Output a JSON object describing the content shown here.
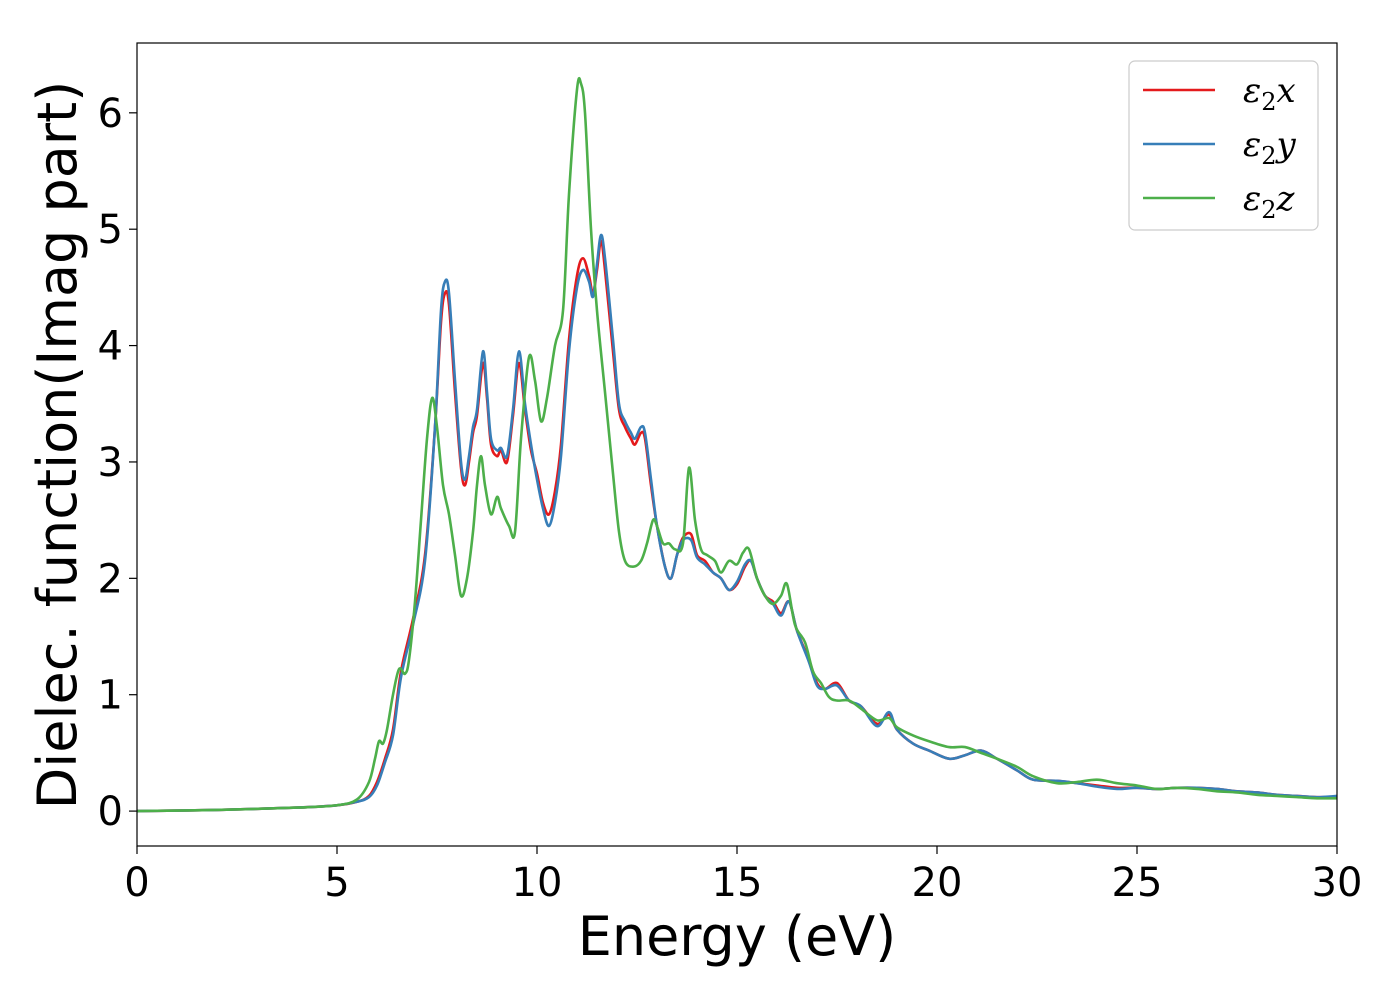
{
  "chart_data": {
    "type": "line",
    "xlabel": "Energy (eV)",
    "ylabel": "Dielec. function(Imag part)",
    "xlim": [
      0,
      30
    ],
    "ylim": [
      -0.3,
      6.6
    ],
    "xticks": [
      0,
      5,
      10,
      15,
      20,
      25,
      30
    ],
    "yticks": [
      0,
      1,
      2,
      3,
      4,
      5,
      6
    ],
    "grid": false,
    "legend": "top-right",
    "series": [
      {
        "name": "ε2x",
        "legend_base": "ε",
        "legend_sub": "2",
        "legend_var": "x",
        "color": "#e41a1c",
        "points": [
          [
            0,
            0.0
          ],
          [
            2,
            0.01
          ],
          [
            4,
            0.03
          ],
          [
            5,
            0.05
          ],
          [
            5.5,
            0.08
          ],
          [
            5.8,
            0.13
          ],
          [
            6.0,
            0.25
          ],
          [
            6.2,
            0.45
          ],
          [
            6.4,
            0.7
          ],
          [
            6.6,
            1.2
          ],
          [
            6.9,
            1.65
          ],
          [
            7.2,
            2.2
          ],
          [
            7.45,
            3.3
          ],
          [
            7.6,
            4.2
          ],
          [
            7.7,
            4.45
          ],
          [
            7.8,
            4.35
          ],
          [
            7.95,
            3.6
          ],
          [
            8.1,
            2.95
          ],
          [
            8.2,
            2.8
          ],
          [
            8.3,
            3.0
          ],
          [
            8.4,
            3.25
          ],
          [
            8.5,
            3.4
          ],
          [
            8.65,
            3.85
          ],
          [
            8.75,
            3.55
          ],
          [
            8.85,
            3.15
          ],
          [
            9.0,
            3.05
          ],
          [
            9.1,
            3.1
          ],
          [
            9.25,
            3.0
          ],
          [
            9.4,
            3.4
          ],
          [
            9.55,
            3.85
          ],
          [
            9.7,
            3.45
          ],
          [
            9.85,
            3.1
          ],
          [
            10.0,
            2.9
          ],
          [
            10.15,
            2.65
          ],
          [
            10.3,
            2.55
          ],
          [
            10.45,
            2.75
          ],
          [
            10.6,
            3.15
          ],
          [
            10.8,
            4.05
          ],
          [
            11.0,
            4.6
          ],
          [
            11.15,
            4.75
          ],
          [
            11.3,
            4.6
          ],
          [
            11.4,
            4.45
          ],
          [
            11.5,
            4.65
          ],
          [
            11.6,
            4.9
          ],
          [
            11.7,
            4.65
          ],
          [
            11.9,
            3.95
          ],
          [
            12.05,
            3.45
          ],
          [
            12.2,
            3.3
          ],
          [
            12.35,
            3.2
          ],
          [
            12.45,
            3.15
          ],
          [
            12.6,
            3.25
          ],
          [
            12.7,
            3.2
          ],
          [
            12.85,
            2.8
          ],
          [
            13.0,
            2.45
          ],
          [
            13.2,
            2.1
          ],
          [
            13.35,
            2.0
          ],
          [
            13.5,
            2.2
          ],
          [
            13.65,
            2.35
          ],
          [
            13.85,
            2.38
          ],
          [
            14.0,
            2.2
          ],
          [
            14.2,
            2.15
          ],
          [
            14.4,
            2.05
          ],
          [
            14.6,
            2.0
          ],
          [
            14.8,
            1.9
          ],
          [
            15.0,
            1.95
          ],
          [
            15.2,
            2.1
          ],
          [
            15.35,
            2.15
          ],
          [
            15.5,
            2.0
          ],
          [
            15.7,
            1.85
          ],
          [
            15.9,
            1.8
          ],
          [
            16.1,
            1.7
          ],
          [
            16.3,
            1.8
          ],
          [
            16.5,
            1.55
          ],
          [
            16.8,
            1.3
          ],
          [
            17.0,
            1.1
          ],
          [
            17.2,
            1.05
          ],
          [
            17.5,
            1.1
          ],
          [
            17.8,
            0.95
          ],
          [
            18.1,
            0.9
          ],
          [
            18.5,
            0.75
          ],
          [
            18.8,
            0.83
          ],
          [
            19.0,
            0.7
          ],
          [
            19.4,
            0.58
          ],
          [
            19.8,
            0.52
          ],
          [
            20.3,
            0.45
          ],
          [
            20.7,
            0.48
          ],
          [
            21.1,
            0.52
          ],
          [
            21.5,
            0.45
          ],
          [
            22.0,
            0.35
          ],
          [
            22.4,
            0.27
          ],
          [
            23.0,
            0.26
          ],
          [
            23.5,
            0.24
          ],
          [
            24.0,
            0.22
          ],
          [
            24.5,
            0.2
          ],
          [
            25.0,
            0.2
          ],
          [
            25.5,
            0.19
          ],
          [
            26.0,
            0.2
          ],
          [
            26.5,
            0.2
          ],
          [
            27.0,
            0.19
          ],
          [
            27.5,
            0.17
          ],
          [
            28.0,
            0.16
          ],
          [
            28.5,
            0.14
          ],
          [
            29.0,
            0.13
          ],
          [
            29.5,
            0.12
          ],
          [
            30.0,
            0.12
          ]
        ]
      },
      {
        "name": "ε2y",
        "legend_base": "ε",
        "legend_sub": "2",
        "legend_var": "y",
        "color": "#377eb8",
        "points": [
          [
            0,
            0.0
          ],
          [
            2,
            0.01
          ],
          [
            4,
            0.03
          ],
          [
            5,
            0.05
          ],
          [
            5.5,
            0.08
          ],
          [
            5.8,
            0.12
          ],
          [
            6.0,
            0.22
          ],
          [
            6.2,
            0.42
          ],
          [
            6.4,
            0.65
          ],
          [
            6.6,
            1.15
          ],
          [
            6.9,
            1.6
          ],
          [
            7.2,
            2.15
          ],
          [
            7.45,
            3.3
          ],
          [
            7.6,
            4.3
          ],
          [
            7.7,
            4.55
          ],
          [
            7.8,
            4.45
          ],
          [
            7.95,
            3.7
          ],
          [
            8.1,
            3.0
          ],
          [
            8.2,
            2.85
          ],
          [
            8.3,
            3.05
          ],
          [
            8.4,
            3.3
          ],
          [
            8.5,
            3.45
          ],
          [
            8.65,
            3.95
          ],
          [
            8.75,
            3.6
          ],
          [
            8.85,
            3.2
          ],
          [
            9.0,
            3.1
          ],
          [
            9.1,
            3.12
          ],
          [
            9.25,
            3.05
          ],
          [
            9.4,
            3.45
          ],
          [
            9.55,
            3.95
          ],
          [
            9.7,
            3.5
          ],
          [
            9.85,
            3.15
          ],
          [
            10.0,
            2.85
          ],
          [
            10.15,
            2.6
          ],
          [
            10.3,
            2.45
          ],
          [
            10.45,
            2.65
          ],
          [
            10.6,
            3.05
          ],
          [
            10.8,
            3.95
          ],
          [
            11.0,
            4.5
          ],
          [
            11.15,
            4.65
          ],
          [
            11.3,
            4.55
          ],
          [
            11.4,
            4.42
          ],
          [
            11.5,
            4.7
          ],
          [
            11.6,
            4.95
          ],
          [
            11.7,
            4.75
          ],
          [
            11.9,
            4.05
          ],
          [
            12.05,
            3.5
          ],
          [
            12.2,
            3.35
          ],
          [
            12.35,
            3.25
          ],
          [
            12.45,
            3.2
          ],
          [
            12.6,
            3.3
          ],
          [
            12.7,
            3.25
          ],
          [
            12.85,
            2.85
          ],
          [
            13.0,
            2.45
          ],
          [
            13.2,
            2.1
          ],
          [
            13.35,
            2.0
          ],
          [
            13.5,
            2.2
          ],
          [
            13.65,
            2.33
          ],
          [
            13.85,
            2.33
          ],
          [
            14.0,
            2.18
          ],
          [
            14.2,
            2.12
          ],
          [
            14.4,
            2.05
          ],
          [
            14.6,
            2.0
          ],
          [
            14.8,
            1.9
          ],
          [
            15.0,
            1.97
          ],
          [
            15.2,
            2.12
          ],
          [
            15.35,
            2.15
          ],
          [
            15.5,
            2.0
          ],
          [
            15.7,
            1.85
          ],
          [
            15.9,
            1.78
          ],
          [
            16.1,
            1.68
          ],
          [
            16.3,
            1.8
          ],
          [
            16.5,
            1.55
          ],
          [
            16.8,
            1.28
          ],
          [
            17.0,
            1.08
          ],
          [
            17.2,
            1.05
          ],
          [
            17.5,
            1.08
          ],
          [
            17.8,
            0.95
          ],
          [
            18.1,
            0.9
          ],
          [
            18.5,
            0.73
          ],
          [
            18.8,
            0.85
          ],
          [
            19.0,
            0.7
          ],
          [
            19.4,
            0.58
          ],
          [
            19.8,
            0.52
          ],
          [
            20.3,
            0.45
          ],
          [
            20.7,
            0.48
          ],
          [
            21.1,
            0.52
          ],
          [
            21.5,
            0.45
          ],
          [
            22.0,
            0.35
          ],
          [
            22.4,
            0.27
          ],
          [
            23.0,
            0.26
          ],
          [
            23.5,
            0.24
          ],
          [
            24.0,
            0.21
          ],
          [
            24.5,
            0.19
          ],
          [
            25.0,
            0.2
          ],
          [
            25.5,
            0.19
          ],
          [
            26.0,
            0.2
          ],
          [
            26.5,
            0.2
          ],
          [
            27.0,
            0.19
          ],
          [
            27.5,
            0.17
          ],
          [
            28.0,
            0.16
          ],
          [
            28.5,
            0.14
          ],
          [
            29.0,
            0.13
          ],
          [
            29.5,
            0.12
          ],
          [
            30.0,
            0.13
          ]
        ]
      },
      {
        "name": "ε2z",
        "legend_base": "ε",
        "legend_sub": "2",
        "legend_var": "z",
        "color": "#4daf4a",
        "points": [
          [
            0,
            0.0
          ],
          [
            2,
            0.01
          ],
          [
            4,
            0.03
          ],
          [
            5,
            0.05
          ],
          [
            5.5,
            0.1
          ],
          [
            5.8,
            0.25
          ],
          [
            5.95,
            0.45
          ],
          [
            6.05,
            0.6
          ],
          [
            6.15,
            0.58
          ],
          [
            6.25,
            0.7
          ],
          [
            6.4,
            1.0
          ],
          [
            6.55,
            1.22
          ],
          [
            6.7,
            1.18
          ],
          [
            6.8,
            1.3
          ],
          [
            6.95,
            1.8
          ],
          [
            7.1,
            2.5
          ],
          [
            7.25,
            3.2
          ],
          [
            7.38,
            3.55
          ],
          [
            7.5,
            3.3
          ],
          [
            7.65,
            2.8
          ],
          [
            7.8,
            2.55
          ],
          [
            7.95,
            2.2
          ],
          [
            8.1,
            1.85
          ],
          [
            8.25,
            2.0
          ],
          [
            8.4,
            2.4
          ],
          [
            8.5,
            2.8
          ],
          [
            8.6,
            3.05
          ],
          [
            8.7,
            2.8
          ],
          [
            8.85,
            2.55
          ],
          [
            9.0,
            2.7
          ],
          [
            9.1,
            2.6
          ],
          [
            9.3,
            2.45
          ],
          [
            9.45,
            2.4
          ],
          [
            9.6,
            3.2
          ],
          [
            9.8,
            3.9
          ],
          [
            9.95,
            3.7
          ],
          [
            10.1,
            3.35
          ],
          [
            10.25,
            3.55
          ],
          [
            10.45,
            4.0
          ],
          [
            10.65,
            4.3
          ],
          [
            10.8,
            5.3
          ],
          [
            11.0,
            6.2
          ],
          [
            11.1,
            6.25
          ],
          [
            11.2,
            6.0
          ],
          [
            11.35,
            5.0
          ],
          [
            11.5,
            4.3
          ],
          [
            11.7,
            3.6
          ],
          [
            11.9,
            2.9
          ],
          [
            12.05,
            2.4
          ],
          [
            12.2,
            2.15
          ],
          [
            12.4,
            2.1
          ],
          [
            12.6,
            2.15
          ],
          [
            12.75,
            2.3
          ],
          [
            12.9,
            2.5
          ],
          [
            13.0,
            2.45
          ],
          [
            13.15,
            2.3
          ],
          [
            13.3,
            2.3
          ],
          [
            13.45,
            2.25
          ],
          [
            13.65,
            2.3
          ],
          [
            13.8,
            2.95
          ],
          [
            13.95,
            2.5
          ],
          [
            14.1,
            2.25
          ],
          [
            14.25,
            2.2
          ],
          [
            14.45,
            2.15
          ],
          [
            14.6,
            2.05
          ],
          [
            14.8,
            2.15
          ],
          [
            15.0,
            2.12
          ],
          [
            15.15,
            2.22
          ],
          [
            15.3,
            2.25
          ],
          [
            15.5,
            2.0
          ],
          [
            15.7,
            1.85
          ],
          [
            15.9,
            1.78
          ],
          [
            16.1,
            1.85
          ],
          [
            16.25,
            1.95
          ],
          [
            16.45,
            1.6
          ],
          [
            16.7,
            1.45
          ],
          [
            16.9,
            1.2
          ],
          [
            17.1,
            1.1
          ],
          [
            17.3,
            0.98
          ],
          [
            17.5,
            0.95
          ],
          [
            17.8,
            0.95
          ],
          [
            18.1,
            0.88
          ],
          [
            18.5,
            0.78
          ],
          [
            18.8,
            0.8
          ],
          [
            19.0,
            0.72
          ],
          [
            19.4,
            0.65
          ],
          [
            19.8,
            0.6
          ],
          [
            20.3,
            0.55
          ],
          [
            20.7,
            0.55
          ],
          [
            21.1,
            0.5
          ],
          [
            21.5,
            0.45
          ],
          [
            22.0,
            0.38
          ],
          [
            22.4,
            0.3
          ],
          [
            23.0,
            0.24
          ],
          [
            23.5,
            0.25
          ],
          [
            24.0,
            0.27
          ],
          [
            24.5,
            0.24
          ],
          [
            25.0,
            0.22
          ],
          [
            25.5,
            0.19
          ],
          [
            26.0,
            0.2
          ],
          [
            26.5,
            0.19
          ],
          [
            27.0,
            0.17
          ],
          [
            27.5,
            0.16
          ],
          [
            28.0,
            0.14
          ],
          [
            28.5,
            0.13
          ],
          [
            29.0,
            0.12
          ],
          [
            29.5,
            0.11
          ],
          [
            30.0,
            0.11
          ]
        ]
      }
    ]
  }
}
